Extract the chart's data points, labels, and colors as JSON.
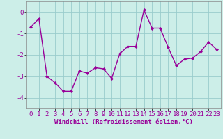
{
  "x": [
    0,
    1,
    2,
    3,
    4,
    5,
    6,
    7,
    8,
    9,
    10,
    11,
    12,
    13,
    14,
    15,
    16,
    17,
    18,
    19,
    20,
    21,
    22,
    23
  ],
  "y": [
    -0.7,
    -0.3,
    -3.0,
    -3.3,
    -3.7,
    -3.7,
    -2.75,
    -2.85,
    -2.6,
    -2.65,
    -3.1,
    -1.95,
    -1.6,
    -1.6,
    0.1,
    -0.75,
    -0.75,
    -1.65,
    -2.5,
    -2.2,
    -2.15,
    -1.85,
    -1.4,
    -1.75
  ],
  "line_color": "#990099",
  "marker": "D",
  "marker_size": 2,
  "bg_color": "#cceee8",
  "grid_color": "#99cccc",
  "xlabel": "Windchill (Refroidissement éolien,°C)",
  "ylim": [
    -4.5,
    0.5
  ],
  "xlim": [
    -0.5,
    23.5
  ],
  "yticks": [
    0,
    -1,
    -2,
    -3,
    -4
  ],
  "xticks": [
    0,
    1,
    2,
    3,
    4,
    5,
    6,
    7,
    8,
    9,
    10,
    11,
    12,
    13,
    14,
    15,
    16,
    17,
    18,
    19,
    20,
    21,
    22,
    23
  ],
  "xlabel_fontsize": 6.5,
  "tick_fontsize": 6.5,
  "linewidth": 1.0
}
